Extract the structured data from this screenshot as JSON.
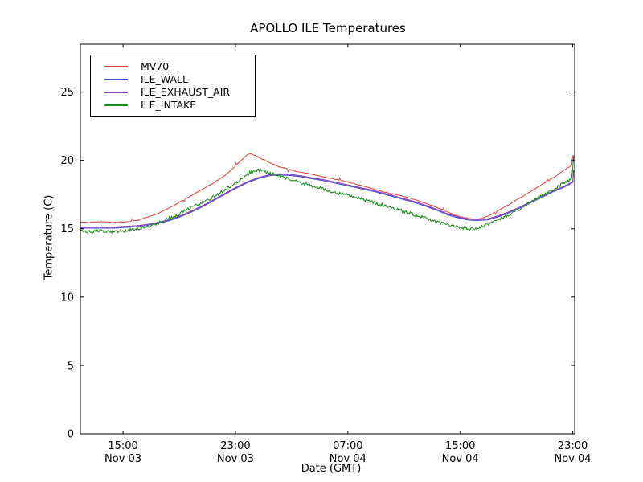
{
  "chart_data": {
    "type": "line",
    "title": "APOLLO ILE Temperatures",
    "xlabel": "Date (GMT)",
    "ylabel": "Temperature (C)",
    "grid": false,
    "legend_position": "upper left",
    "ylim": [
      0,
      28.5
    ],
    "yticks": [
      0,
      5,
      10,
      15,
      20,
      25
    ],
    "xlim": [
      0,
      35.35
    ],
    "x_unit": "hours since Nov 03 ~12:00 GMT",
    "xticks": [
      {
        "t": 3.05,
        "time": "15:00",
        "date": "Nov 03"
      },
      {
        "t": 11.09,
        "time": "23:00",
        "date": "Nov 03"
      },
      {
        "t": 19.13,
        "time": "07:00",
        "date": "Nov 04"
      },
      {
        "t": 27.17,
        "time": "15:00",
        "date": "Nov 04"
      },
      {
        "t": 35.21,
        "time": "23:00",
        "date": "Nov 04"
      }
    ],
    "series": [
      {
        "name": "MV70",
        "color": "#e04b45",
        "noise": 0.025,
        "spike_every": 53,
        "spike_mag": 0.16,
        "points": [
          [
            0,
            15.5
          ],
          [
            0.6,
            15.45
          ],
          [
            1.2,
            15.5
          ],
          [
            1.8,
            15.5
          ],
          [
            2.4,
            15.45
          ],
          [
            3.0,
            15.5
          ],
          [
            3.6,
            15.55
          ],
          [
            4.2,
            15.65
          ],
          [
            4.8,
            15.85
          ],
          [
            5.4,
            16.05
          ],
          [
            6.0,
            16.35
          ],
          [
            6.6,
            16.65
          ],
          [
            7.2,
            17.0
          ],
          [
            7.8,
            17.35
          ],
          [
            8.4,
            17.7
          ],
          [
            9.0,
            18.05
          ],
          [
            9.6,
            18.4
          ],
          [
            10.2,
            18.8
          ],
          [
            10.8,
            19.3
          ],
          [
            11.3,
            19.8
          ],
          [
            11.8,
            20.3
          ],
          [
            12.1,
            20.5
          ],
          [
            12.5,
            20.35
          ],
          [
            13.0,
            20.1
          ],
          [
            13.6,
            19.8
          ],
          [
            14.2,
            19.55
          ],
          [
            14.9,
            19.35
          ],
          [
            15.7,
            19.15
          ],
          [
            16.5,
            19.0
          ],
          [
            17.4,
            18.8
          ],
          [
            18.3,
            18.6
          ],
          [
            19.2,
            18.4
          ],
          [
            20.1,
            18.15
          ],
          [
            21.0,
            17.9
          ],
          [
            21.9,
            17.65
          ],
          [
            22.8,
            17.45
          ],
          [
            23.7,
            17.2
          ],
          [
            24.6,
            16.9
          ],
          [
            25.4,
            16.6
          ],
          [
            26.2,
            16.25
          ],
          [
            26.9,
            15.95
          ],
          [
            27.5,
            15.8
          ],
          [
            28.1,
            15.7
          ],
          [
            28.7,
            15.75
          ],
          [
            29.3,
            16.0
          ],
          [
            30.0,
            16.4
          ],
          [
            30.8,
            16.85
          ],
          [
            31.6,
            17.35
          ],
          [
            32.4,
            17.85
          ],
          [
            33.2,
            18.35
          ],
          [
            34.0,
            18.85
          ],
          [
            34.6,
            19.3
          ],
          [
            35.1,
            19.6
          ],
          [
            35.18,
            19.7
          ],
          [
            35.24,
            20.9
          ],
          [
            35.3,
            19.85
          ]
        ]
      },
      {
        "name": "ILE_WALL",
        "color": "#4747d1",
        "noise": 0,
        "spike_every": 0,
        "spike_mag": 0,
        "points": [
          [
            0,
            15.05
          ],
          [
            0.8,
            15.05
          ],
          [
            1.6,
            15.05
          ],
          [
            2.4,
            15.05
          ],
          [
            3.2,
            15.1
          ],
          [
            4.0,
            15.15
          ],
          [
            4.8,
            15.25
          ],
          [
            5.6,
            15.4
          ],
          [
            6.4,
            15.6
          ],
          [
            7.2,
            15.9
          ],
          [
            8.0,
            16.25
          ],
          [
            8.8,
            16.65
          ],
          [
            9.6,
            17.1
          ],
          [
            10.4,
            17.55
          ],
          [
            11.2,
            18.0
          ],
          [
            12.0,
            18.4
          ],
          [
            12.8,
            18.7
          ],
          [
            13.6,
            18.9
          ],
          [
            14.3,
            18.95
          ],
          [
            15.0,
            18.9
          ],
          [
            15.8,
            18.8
          ],
          [
            16.6,
            18.65
          ],
          [
            17.5,
            18.5
          ],
          [
            18.4,
            18.3
          ],
          [
            19.3,
            18.1
          ],
          [
            20.2,
            17.9
          ],
          [
            21.1,
            17.7
          ],
          [
            22.0,
            17.45
          ],
          [
            22.9,
            17.2
          ],
          [
            23.8,
            16.95
          ],
          [
            24.7,
            16.65
          ],
          [
            25.5,
            16.35
          ],
          [
            26.3,
            16.0
          ],
          [
            27.0,
            15.8
          ],
          [
            27.7,
            15.65
          ],
          [
            28.4,
            15.6
          ],
          [
            29.1,
            15.65
          ],
          [
            29.8,
            15.85
          ],
          [
            30.6,
            16.15
          ],
          [
            31.4,
            16.5
          ],
          [
            32.2,
            16.9
          ],
          [
            33.0,
            17.3
          ],
          [
            33.8,
            17.7
          ],
          [
            34.5,
            18.0
          ],
          [
            35.0,
            18.25
          ],
          [
            35.22,
            18.4
          ],
          [
            35.28,
            19.25
          ]
        ]
      },
      {
        "name": "ILE_EXHAUST_AIR",
        "color": "#8a3bb0",
        "noise": 0,
        "spike_every": 0,
        "spike_mag": 0,
        "points": [
          [
            0,
            15.12
          ],
          [
            0.8,
            15.12
          ],
          [
            1.6,
            15.12
          ],
          [
            2.4,
            15.12
          ],
          [
            3.2,
            15.17
          ],
          [
            4.0,
            15.22
          ],
          [
            4.8,
            15.32
          ],
          [
            5.6,
            15.47
          ],
          [
            6.4,
            15.67
          ],
          [
            7.2,
            15.97
          ],
          [
            8.0,
            16.32
          ],
          [
            8.8,
            16.72
          ],
          [
            9.6,
            17.17
          ],
          [
            10.4,
            17.62
          ],
          [
            11.2,
            18.07
          ],
          [
            12.0,
            18.47
          ],
          [
            12.8,
            18.77
          ],
          [
            13.6,
            18.97
          ],
          [
            14.3,
            19.02
          ],
          [
            15.0,
            18.97
          ],
          [
            15.8,
            18.87
          ],
          [
            16.6,
            18.72
          ],
          [
            17.5,
            18.57
          ],
          [
            18.4,
            18.37
          ],
          [
            19.3,
            18.17
          ],
          [
            20.2,
            17.97
          ],
          [
            21.1,
            17.77
          ],
          [
            22.0,
            17.52
          ],
          [
            22.9,
            17.27
          ],
          [
            23.8,
            17.02
          ],
          [
            24.7,
            16.72
          ],
          [
            25.5,
            16.42
          ],
          [
            26.3,
            16.07
          ],
          [
            27.0,
            15.87
          ],
          [
            27.7,
            15.72
          ],
          [
            28.4,
            15.67
          ],
          [
            29.1,
            15.72
          ],
          [
            29.8,
            15.92
          ],
          [
            30.6,
            16.22
          ],
          [
            31.4,
            16.57
          ],
          [
            32.2,
            16.97
          ],
          [
            33.0,
            17.37
          ],
          [
            33.8,
            17.77
          ],
          [
            34.5,
            18.07
          ],
          [
            35.0,
            18.32
          ],
          [
            35.22,
            18.45
          ],
          [
            35.28,
            19.3
          ]
        ]
      },
      {
        "name": "ILE_INTAKE",
        "color": "#1d8c1d",
        "noise": 0.12,
        "spike_every": 0,
        "spike_mag": 0,
        "points": [
          [
            0,
            14.85
          ],
          [
            0.7,
            14.8
          ],
          [
            1.4,
            14.85
          ],
          [
            2.1,
            14.8
          ],
          [
            2.8,
            14.8
          ],
          [
            3.5,
            14.9
          ],
          [
            4.2,
            15.0
          ],
          [
            4.9,
            15.2
          ],
          [
            5.6,
            15.45
          ],
          [
            6.3,
            15.75
          ],
          [
            7.0,
            16.05
          ],
          [
            7.7,
            16.4
          ],
          [
            8.4,
            16.75
          ],
          [
            9.1,
            17.1
          ],
          [
            9.8,
            17.5
          ],
          [
            10.5,
            17.95
          ],
          [
            11.2,
            18.45
          ],
          [
            11.9,
            18.95
          ],
          [
            12.4,
            19.3
          ],
          [
            12.8,
            19.25
          ],
          [
            13.4,
            19.1
          ],
          [
            14.1,
            18.9
          ],
          [
            14.9,
            18.65
          ],
          [
            15.7,
            18.4
          ],
          [
            16.6,
            18.1
          ],
          [
            17.5,
            17.85
          ],
          [
            18.5,
            17.6
          ],
          [
            19.5,
            17.35
          ],
          [
            20.5,
            17.05
          ],
          [
            21.5,
            16.75
          ],
          [
            22.5,
            16.45
          ],
          [
            23.5,
            16.15
          ],
          [
            24.5,
            15.85
          ],
          [
            25.4,
            15.55
          ],
          [
            26.2,
            15.3
          ],
          [
            27.0,
            15.1
          ],
          [
            27.7,
            15.0
          ],
          [
            28.4,
            15.05
          ],
          [
            29.1,
            15.3
          ],
          [
            29.8,
            15.6
          ],
          [
            30.6,
            16.0
          ],
          [
            31.4,
            16.45
          ],
          [
            32.2,
            16.95
          ],
          [
            33.0,
            17.4
          ],
          [
            33.8,
            17.85
          ],
          [
            34.5,
            18.3
          ],
          [
            35.0,
            18.55
          ],
          [
            35.2,
            18.65
          ],
          [
            35.25,
            22.3
          ],
          [
            35.3,
            18.9
          ]
        ]
      }
    ],
    "frame_color": "#000000",
    "background_color": "#ffffff"
  }
}
